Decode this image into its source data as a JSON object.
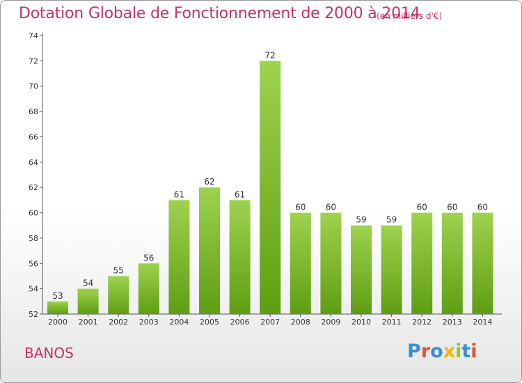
{
  "title": "Dotation Globale de Fonctionnement de 2000 à 2014",
  "subtitle": "(en milliers d'€)",
  "commune": "BANOS",
  "logo": {
    "letters": [
      "P",
      "r",
      "o",
      "x",
      "i",
      "t",
      "i"
    ],
    "colors": [
      "#3a8fd6",
      "#e8502a",
      "#3a8fd6",
      "#f2b705",
      "#8cc63f",
      "#3a8fd6",
      "#e8502a"
    ]
  },
  "colors": {
    "bar_light": "#9ed24f",
    "bar_dark": "#5e9e12",
    "title": "#c8306a",
    "axis": "#555555"
  },
  "chart_data": {
    "type": "bar",
    "title": "Dotation Globale de Fonctionnement de 2000 à 2014",
    "subtitle": "(en milliers d'€)",
    "categories": [
      "2000",
      "2001",
      "2002",
      "2003",
      "2004",
      "2005",
      "2006",
      "2007",
      "2008",
      "2009",
      "2010",
      "2011",
      "2012",
      "2013",
      "2014"
    ],
    "values": [
      53,
      54,
      55,
      56,
      61,
      62,
      61,
      72,
      60,
      60,
      59,
      59,
      60,
      60,
      60
    ],
    "ylim": [
      52,
      74
    ],
    "yticks": [
      52,
      54,
      56,
      58,
      60,
      62,
      64,
      66,
      68,
      70,
      72,
      74
    ],
    "grid": false,
    "xlabel": "",
    "ylabel": ""
  }
}
